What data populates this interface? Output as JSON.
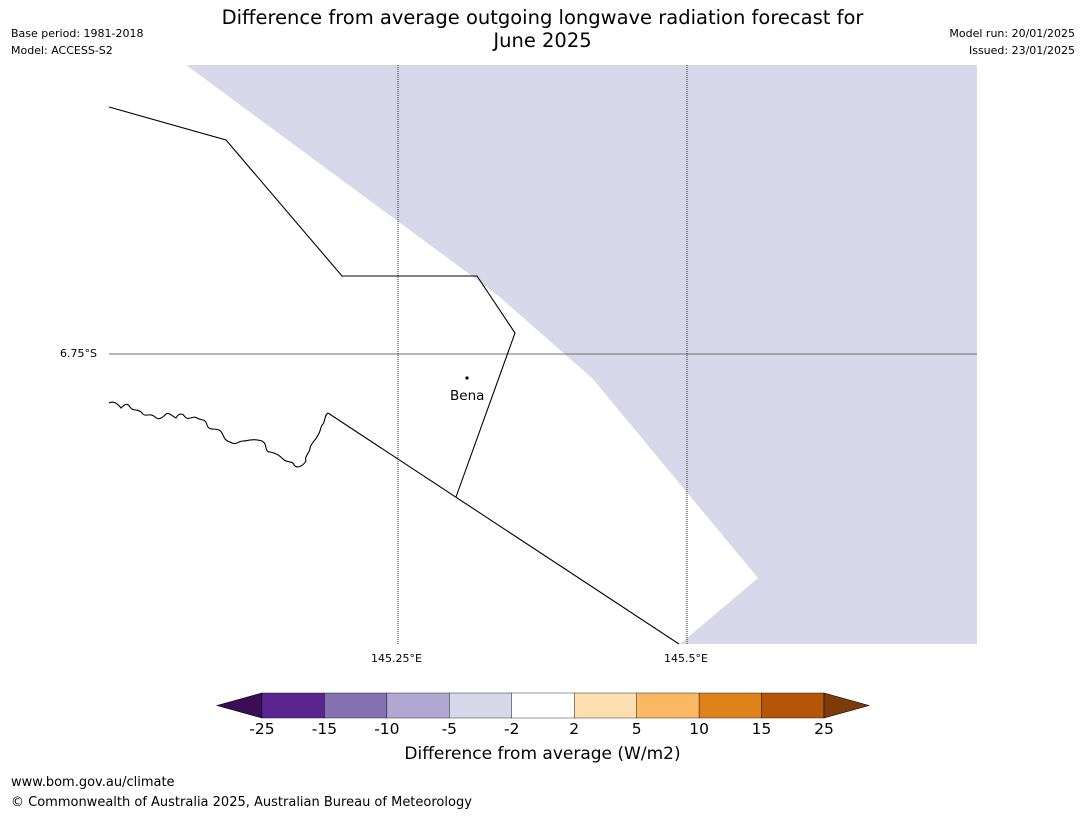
{
  "header": {
    "title_line1": "Difference from average outgoing longwave radiation forecast for",
    "title_line2": "June 2025",
    "base_period": "Base period: 1981-2018",
    "model": "Model: ACCESS-S2",
    "model_run": "Model run: 20/01/2025",
    "issued": "Issued: 23/01/2025"
  },
  "map": {
    "latitude_labels": [
      "6.75°S"
    ],
    "longitude_labels": [
      "145.25°E",
      "145.5°E"
    ],
    "places": [
      {
        "name": "Bena"
      }
    ],
    "anomaly_category_shown": "-5 to -2",
    "anomaly_color": "#d8d8ea"
  },
  "colorbar": {
    "label": "Difference from average (W/m2)",
    "ticks": [
      "-25",
      "-15",
      "-10",
      "-5",
      "-2",
      "2",
      "5",
      "10",
      "15",
      "25"
    ],
    "colors": [
      "#3a0d57",
      "#5b2591",
      "#8473b0",
      "#b0a8d3",
      "#d8d8ea",
      "#ffffff",
      "#fddfb1",
      "#fbb862",
      "#e0821a",
      "#b45508",
      "#7f3a0a"
    ]
  },
  "footer": {
    "url": "www.bom.gov.au/climate",
    "copyright": "© Commonwealth of Australia 2025, Australian Bureau of Meteorology"
  }
}
